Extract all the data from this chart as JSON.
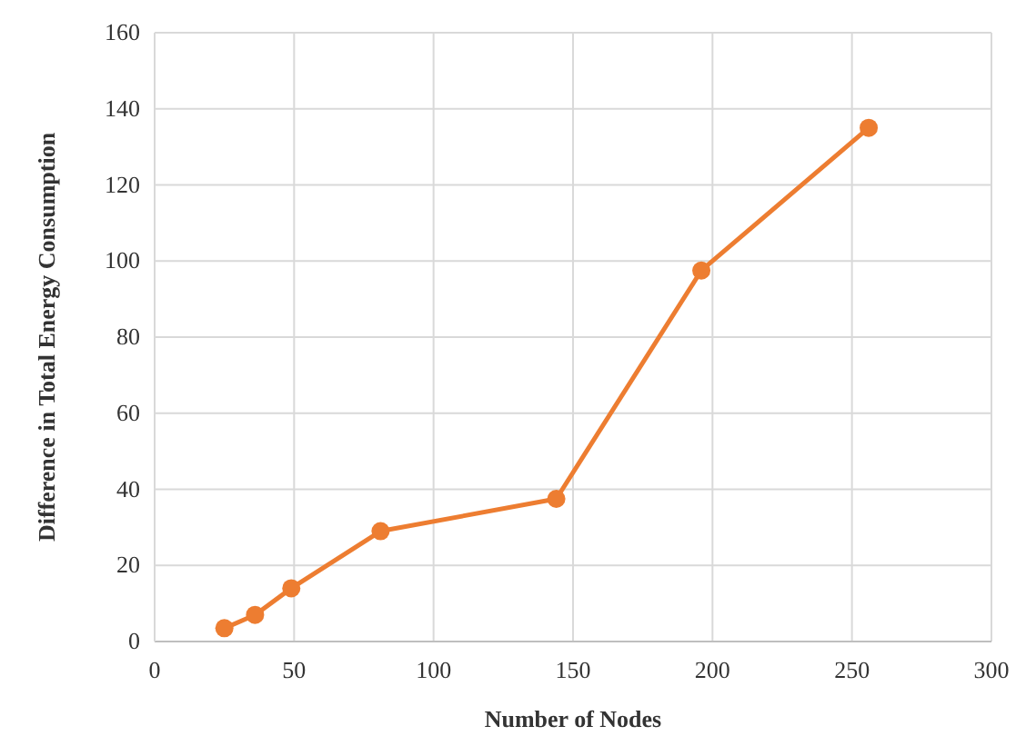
{
  "chart_data": {
    "type": "line",
    "xlabel": "Number of Nodes",
    "ylabel": "Difference in Total Energy Consumption",
    "x": [
      25,
      36,
      49,
      81,
      144,
      196,
      256
    ],
    "series": [
      {
        "color": "#ed7d31",
        "values": [
          3.5,
          7,
          14,
          29,
          37.5,
          97.5,
          135
        ]
      }
    ],
    "xlim": [
      0,
      300
    ],
    "xticks": [
      0,
      50,
      100,
      150,
      200,
      250,
      300
    ],
    "ylim": [
      0,
      160
    ],
    "yticks": [
      0,
      20,
      40,
      60,
      80,
      100,
      120,
      140,
      160
    ],
    "grid": true,
    "marker": "circle",
    "line_style": "solid"
  }
}
